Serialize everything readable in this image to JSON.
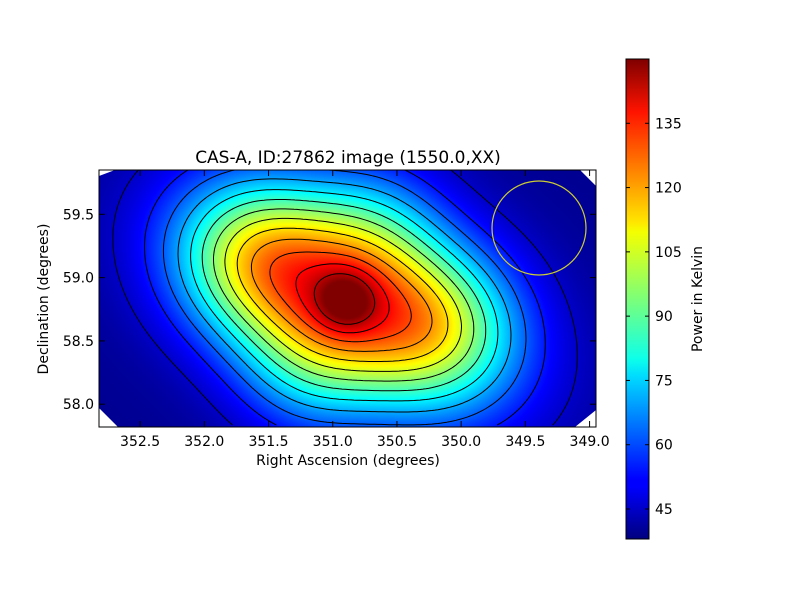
{
  "chart_data": {
    "type": "heatmap",
    "title": "CAS-A, ID:27862 image (1550.0,XX)",
    "xlabel": "Right Ascension (degrees)",
    "ylabel": "Declination (degrees)",
    "xlim": [
      352.82,
      348.95
    ],
    "ylim": [
      57.82,
      59.85
    ],
    "x_ticks": [
      "352.5",
      "352.0",
      "351.5",
      "351.0",
      "350.5",
      "350.0",
      "349.5",
      "349.0"
    ],
    "y_ticks": [
      "58.0",
      "58.5",
      "59.0",
      "59.5"
    ],
    "colorbar": {
      "label": "Power in Kelvin",
      "range": [
        38,
        150
      ],
      "ticks": [
        "45",
        "60",
        "75",
        "90",
        "105",
        "120",
        "135"
      ],
      "colormap": "jet"
    },
    "source": {
      "center_ra": 350.9,
      "center_dec": 58.82,
      "peak_power": 148,
      "background_power": 40
    },
    "contour_count": 13,
    "beam_marker": {
      "ra": 349.37,
      "dec": 59.41,
      "color": "#cccc33"
    }
  }
}
